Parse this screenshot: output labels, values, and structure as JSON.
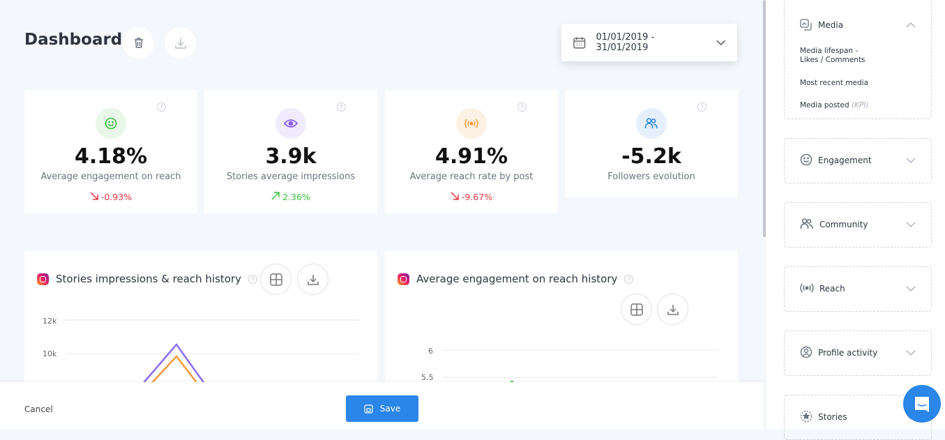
{
  "header": {
    "title": "Dashboard",
    "date_range": "01/01/2019 - 31/01/2019"
  },
  "kpis": [
    {
      "value": "4.18%",
      "label": "Average engagement on reach",
      "change": "-0.93%",
      "trend": "down",
      "icon": "smile-icon",
      "color": "#3cc13b",
      "bg": "#e8f7e8"
    },
    {
      "value": "3.9k",
      "label": "Stories average impressions",
      "change": "2.36%",
      "trend": "up",
      "icon": "eye-icon",
      "color": "#8b5cf6",
      "bg": "#f0ecfd"
    },
    {
      "value": "4.91%",
      "label": "Average reach rate by post",
      "change": "-9.67%",
      "trend": "down",
      "icon": "broadcast-icon",
      "color": "#f59a3c",
      "bg": "#fdf0e4"
    },
    {
      "value": "-5.2k",
      "label": "Followers evolution",
      "change": "",
      "trend": "",
      "icon": "users-icon",
      "color": "#2a86e8",
      "bg": "#e6f0fc"
    }
  ],
  "cards": [
    {
      "title": "Stories impressions & reach history"
    },
    {
      "title": "Average engagement on reach history"
    }
  ],
  "chart_data": [
    {
      "type": "line",
      "yticks": [
        "12k",
        "10k"
      ],
      "ylim_visible": [
        8000,
        12000
      ],
      "series": [
        {
          "color": "#8b6cf0",
          "peak": 10500
        },
        {
          "color": "#f59a3c",
          "peak": 9800
        }
      ]
    },
    {
      "type": "line",
      "yticks": [
        "6",
        "5.5"
      ],
      "series": [
        {
          "color": "#3cc13b"
        }
      ]
    }
  ],
  "footer": {
    "cancel": "Cancel",
    "save": "Save"
  },
  "sidebar": {
    "sections": [
      {
        "label": "Media",
        "icon": "media-icon",
        "expanded": true,
        "items": [
          "Media lifespan - Likes / Comments",
          "Most recent media",
          "Media posted"
        ],
        "kpi_tag": "(KPI)"
      },
      {
        "label": "Engagement",
        "icon": "smile-icon"
      },
      {
        "label": "Community",
        "icon": "users-icon"
      },
      {
        "label": "Reach",
        "icon": "broadcast-icon"
      },
      {
        "label": "Profile activity",
        "icon": "user-circle-icon"
      },
      {
        "label": "Stories",
        "icon": "stories-icon"
      }
    ]
  },
  "colors": {
    "accent": "#2a86e8",
    "negative": "#e8343f",
    "positive": "#3cc13b"
  }
}
